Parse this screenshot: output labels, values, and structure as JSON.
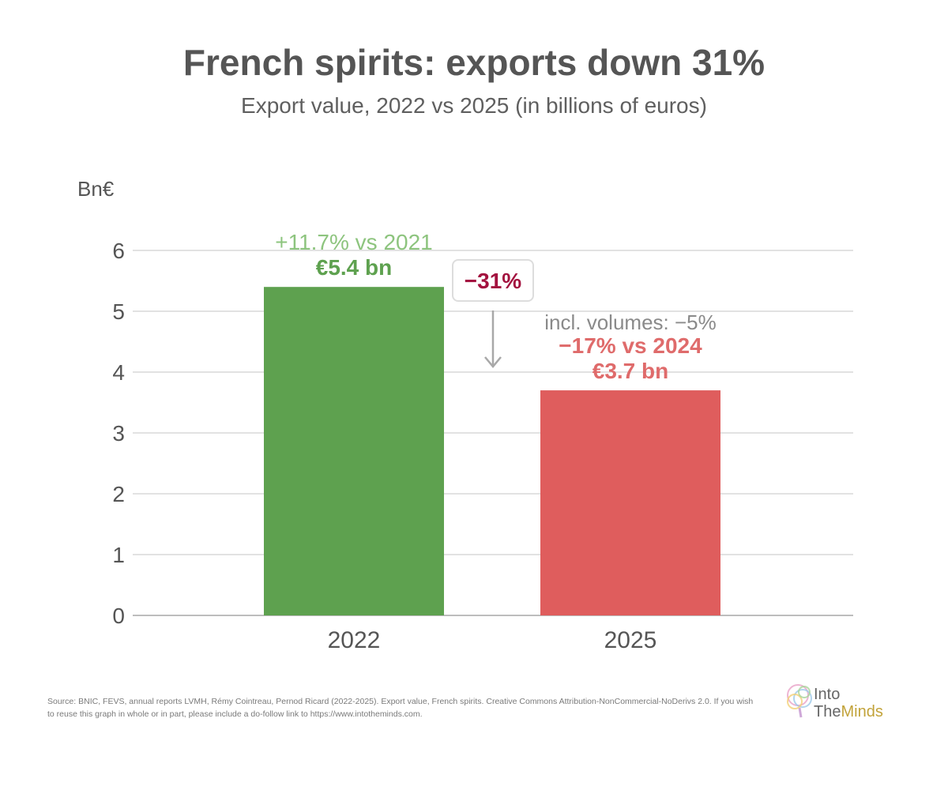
{
  "chart_data": {
    "type": "bar",
    "title": "French spirits: exports down 31%",
    "subtitle": "Export value, 2022 vs 2025 (in billions of euros)",
    "ylabel": "Bn€",
    "ylim": [
      0,
      6
    ],
    "yticks": [
      "0",
      "1",
      "2",
      "3",
      "4",
      "5",
      "6"
    ],
    "categories": [
      "2022",
      "2025"
    ],
    "values": [
      5.4,
      3.7
    ],
    "colors": [
      "#5ea14f",
      "#df5d5d"
    ],
    "grid": true,
    "bar_labels": [
      {
        "change": "+11.7% vs 2021",
        "value": "€5.4 bn"
      },
      {
        "note": "incl. volumes: −5%",
        "change": "−17% vs 2024",
        "value": "€3.7 bn"
      }
    ],
    "callout": {
      "label": "−31%",
      "color": "#a3123f"
    }
  },
  "footer": {
    "source": "Source: BNIC, FEVS, annual reports LVMH, Rémy Cointreau, Pernod Ricard (2022-2025). Export value, French spirits. Creative Commons Attribution-NonCommercial-NoDerivs 2.0. If you wish to reuse this graph in whole or in part, please include a do-follow link to https://www.intotheminds.com.",
    "logo_line1": "Into",
    "logo_line2_a": "The",
    "logo_line2_b": "Minds"
  }
}
